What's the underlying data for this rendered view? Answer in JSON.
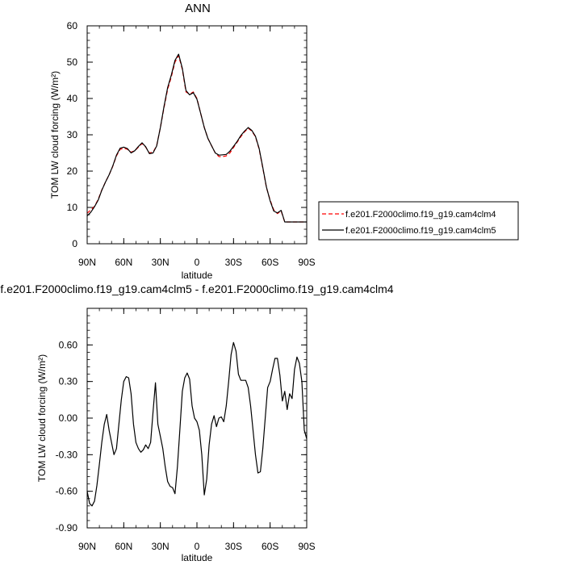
{
  "chart_data": [
    {
      "type": "line",
      "title": "ANN",
      "xlabel": "latitude",
      "ylabel": "TOM LW cloud forcing (W/m²)",
      "ylim": [
        0,
        60
      ],
      "y_ticks": [
        0,
        10,
        20,
        30,
        40,
        50,
        60
      ],
      "y_tick_labels": [
        "0",
        "10",
        "20",
        "30",
        "40",
        "50",
        "60"
      ],
      "xlim": [
        90,
        -90
      ],
      "x_ticks": [
        90,
        60,
        30,
        0,
        -30,
        -60,
        -90
      ],
      "x_tick_labels": [
        "90N",
        "60N",
        "30N",
        "0",
        "30S",
        "60S",
        "90S"
      ],
      "legend_position": "right",
      "series": [
        {
          "name": "f.e201.F2000climo.f19_g19.cam4clm4",
          "color": "#ff0000",
          "style": "dashed",
          "x": [
            90,
            87,
            84,
            81,
            78,
            75,
            72,
            69,
            66,
            63,
            60,
            57,
            54,
            51,
            48,
            45,
            42,
            39,
            36,
            33,
            30,
            27,
            24,
            21,
            18,
            15,
            12,
            9,
            6,
            3,
            0,
            -3,
            -6,
            -9,
            -12,
            -15,
            -18,
            -21,
            -24,
            -27,
            -30,
            -33,
            -36,
            -39,
            -42,
            -45,
            -48,
            -51,
            -54,
            -57,
            -60,
            -63,
            -66,
            -69,
            -72,
            -75,
            -78,
            -81,
            -84,
            -87,
            -90
          ],
          "y": [
            8.4,
            9.3,
            10.3,
            12.2,
            14.8,
            17.0,
            19.0,
            21.3,
            24.2,
            26.0,
            26.3,
            26.0,
            25.2,
            25.6,
            26.6,
            27.6,
            26.6,
            25.0,
            25.2,
            27.0,
            32.0,
            37.5,
            42.5,
            46.0,
            50.0,
            51.8,
            48.0,
            41.8,
            41.2,
            41.8,
            40.0,
            36.0,
            32.0,
            29.0,
            27.0,
            25.0,
            24.0,
            24.0,
            24.2,
            25.0,
            26.5,
            28.0,
            29.5,
            30.8,
            31.8,
            31.0,
            29.5,
            26.0,
            20.8,
            15.5,
            12.0,
            9.3,
            8.3,
            9.0,
            6.0,
            6.0,
            6.0,
            6.0,
            6.0,
            6.0,
            6.0
          ]
        },
        {
          "name": "f.e201.F2000climo.f19_g19.cam4clm5",
          "color": "#000000",
          "style": "solid",
          "x": [
            90,
            87,
            84,
            81,
            78,
            75,
            72,
            69,
            66,
            63,
            60,
            57,
            54,
            51,
            48,
            45,
            42,
            39,
            36,
            33,
            30,
            27,
            24,
            21,
            18,
            15,
            12,
            9,
            6,
            3,
            0,
            -3,
            -6,
            -9,
            -12,
            -15,
            -18,
            -21,
            -24,
            -27,
            -30,
            -33,
            -36,
            -39,
            -42,
            -45,
            -48,
            -51,
            -54,
            -57,
            -60,
            -63,
            -66,
            -69,
            -72,
            -75,
            -78,
            -81,
            -84,
            -87,
            -90
          ],
          "y": [
            7.7,
            8.7,
            10.2,
            12.0,
            14.7,
            17.0,
            19.0,
            21.4,
            24.4,
            26.3,
            26.6,
            26.2,
            25.0,
            25.6,
            26.8,
            27.8,
            26.7,
            24.8,
            25.0,
            26.9,
            32.0,
            37.8,
            43.0,
            46.5,
            50.5,
            52.2,
            48.3,
            42.2,
            41.0,
            41.6,
            39.8,
            36.0,
            32.0,
            29.0,
            27.0,
            25.0,
            24.4,
            24.5,
            24.6,
            25.5,
            26.8,
            28.2,
            29.8,
            31.0,
            32.0,
            31.2,
            29.6,
            26.2,
            21.0,
            15.6,
            11.8,
            9.0,
            8.5,
            9.2,
            6.0,
            6.0,
            6.0,
            6.0,
            6.0,
            6.0,
            6.0
          ]
        }
      ]
    },
    {
      "type": "line",
      "title": "f.e201.F2000climo.f19_g19.cam4clm5 - f.e201.F2000climo.f19_g19.cam4clm4",
      "xlabel": "latitude",
      "ylabel": "TOM LW cloud forcing (W/m²)",
      "ylim": [
        -0.9,
        0.9
      ],
      "y_ticks": [
        -0.9,
        -0.6,
        -0.3,
        0.0,
        0.3,
        0.6
      ],
      "y_tick_labels": [
        "-0.90",
        "-0.60",
        "-0.30",
        "0.00",
        "0.30",
        "0.60"
      ],
      "xlim": [
        90,
        -90
      ],
      "x_ticks": [
        90,
        60,
        30,
        0,
        -30,
        -60,
        -90
      ],
      "x_tick_labels": [
        "90N",
        "60N",
        "30N",
        "0",
        "30S",
        "60S",
        "90S"
      ],
      "series": [
        {
          "color": "#000000",
          "style": "solid",
          "x": [
            90,
            88,
            86,
            84,
            82,
            80,
            78,
            76,
            74,
            72,
            70,
            68,
            66,
            64,
            62,
            60,
            58,
            56,
            54,
            52,
            50,
            48,
            46,
            44,
            42,
            40,
            38,
            36,
            34,
            32,
            30,
            28,
            26,
            24,
            22,
            20,
            18,
            16,
            14,
            12,
            10,
            8,
            6,
            4,
            2,
            0,
            -2,
            -4,
            -6,
            -8,
            -10,
            -12,
            -14,
            -16,
            -18,
            -20,
            -22,
            -24,
            -26,
            -28,
            -30,
            -32,
            -34,
            -36,
            -38,
            -40,
            -42,
            -44,
            -46,
            -48,
            -50,
            -52,
            -54,
            -56,
            -58,
            -60,
            -62,
            -64,
            -66,
            -68,
            -70,
            -72,
            -74,
            -76,
            -78,
            -80,
            -82,
            -84,
            -86,
            -88,
            -90
          ],
          "y": [
            -0.6,
            -0.7,
            -0.72,
            -0.68,
            -0.55,
            -0.38,
            -0.2,
            -0.05,
            0.03,
            -0.1,
            -0.2,
            -0.3,
            -0.25,
            -0.05,
            0.15,
            0.3,
            0.34,
            0.33,
            0.2,
            -0.05,
            -0.2,
            -0.25,
            -0.28,
            -0.26,
            -0.22,
            -0.25,
            -0.2,
            0.05,
            0.29,
            -0.05,
            -0.15,
            -0.25,
            -0.4,
            -0.52,
            -0.56,
            -0.57,
            -0.62,
            -0.4,
            -0.1,
            0.22,
            0.33,
            0.37,
            0.32,
            0.1,
            0.0,
            -0.03,
            -0.1,
            -0.3,
            -0.63,
            -0.5,
            -0.22,
            -0.05,
            0.02,
            -0.07,
            0.0,
            0.01,
            -0.03,
            0.1,
            0.3,
            0.52,
            0.62,
            0.55,
            0.36,
            0.31,
            0.31,
            0.31,
            0.25,
            0.1,
            -0.1,
            -0.3,
            -0.45,
            -0.44,
            -0.25,
            0.0,
            0.25,
            0.3,
            0.4,
            0.49,
            0.49,
            0.35,
            0.14,
            0.22,
            0.07,
            0.2,
            0.16,
            0.4,
            0.5,
            0.45,
            0.3,
            -0.1,
            -0.17
          ]
        }
      ]
    }
  ]
}
